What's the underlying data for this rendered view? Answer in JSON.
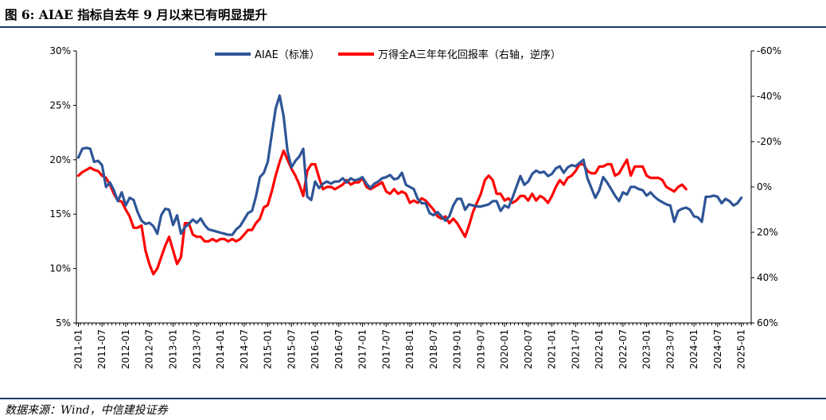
{
  "header": {
    "title": "图 6: AIAE 指标自去年 9 月以来已有明显提升"
  },
  "footer": {
    "source": "数据来源：Wind，中信建投证券"
  },
  "colors": {
    "aiae": "#2e5597",
    "return": "#ff0000",
    "rule": "#1f3a6e"
  },
  "chart_data": {
    "type": "line",
    "title": "",
    "legend_position": "top-center",
    "grid": false,
    "x_start": "2011-01",
    "x_tick_labels": [
      "2011-01",
      "2011-07",
      "2012-01",
      "2012-07",
      "2013-01",
      "2013-07",
      "2014-01",
      "2014-07",
      "2015-01",
      "2015-07",
      "2016-01",
      "2016-07",
      "2017-01",
      "2017-07",
      "2018-01",
      "2018-07",
      "2019-01",
      "2019-07",
      "2020-01",
      "2020-07",
      "2021-01",
      "2021-07",
      "2022-01",
      "2022-07",
      "2023-01",
      "2023-07",
      "2024-01",
      "2024-07",
      "2025-01"
    ],
    "y_left": {
      "min": 5,
      "max": 30,
      "step": 5,
      "tick_labels": [
        "5%",
        "10%",
        "15%",
        "20%",
        "25%",
        "30%"
      ]
    },
    "y_right": {
      "reversed": true,
      "min": -60,
      "max": 60,
      "step": 20,
      "tick_labels": [
        "-60%",
        "-40%",
        "-20%",
        "0%",
        "20%",
        "40%",
        "60%"
      ]
    },
    "series": [
      {
        "name": "AIAE（标准）",
        "axis": "left",
        "values": [
          20.2,
          21.0,
          21.1,
          21.0,
          19.8,
          19.9,
          19.5,
          17.5,
          17.9,
          17.2,
          16.2,
          17.0,
          15.8,
          16.5,
          16.3,
          15.2,
          14.4,
          14.1,
          14.2,
          13.9,
          13.2,
          14.9,
          15.5,
          15.4,
          14.0,
          14.9,
          13.2,
          13.8,
          14.1,
          14.5,
          14.2,
          14.6,
          14.0,
          13.6,
          13.5,
          13.4,
          13.3,
          13.2,
          13.1,
          13.1,
          13.6,
          13.9,
          14.5,
          15.1,
          15.3,
          16.6,
          18.4,
          18.8,
          19.8,
          22.3,
          24.7,
          25.9,
          24.0,
          20.8,
          19.3,
          19.9,
          20.3,
          21.0,
          16.6,
          16.3,
          18.0,
          17.4,
          17.8,
          18.0,
          17.8,
          18.0,
          18.0,
          18.3,
          17.9,
          18.3,
          18.1,
          18.2,
          18.4,
          17.8,
          17.4,
          17.8,
          18.0,
          18.3,
          18.4,
          18.6,
          18.2,
          18.3,
          18.8,
          17.7,
          17.5,
          17.3,
          16.4,
          16.0,
          16.0,
          15.1,
          14.9,
          15.2,
          14.8,
          14.4,
          14.8,
          15.8,
          16.4,
          16.4,
          15.4,
          15.9,
          15.8,
          15.7,
          15.7,
          15.8,
          15.9,
          16.2,
          16.2,
          15.3,
          15.8,
          15.6,
          16.5,
          17.5,
          18.5,
          17.7,
          18.0,
          18.7,
          19.0,
          18.8,
          18.9,
          18.5,
          18.7,
          19.2,
          19.4,
          18.8,
          19.3,
          19.5,
          19.4,
          19.7,
          20.0,
          18.3,
          17.4,
          16.5,
          17.2,
          18.4,
          17.9,
          17.3,
          16.7,
          16.2,
          17.0,
          16.8,
          17.5,
          17.5,
          17.3,
          17.2,
          16.7,
          17.0,
          16.6,
          16.3,
          16.1,
          15.9,
          15.8,
          14.3,
          15.3,
          15.5,
          15.6,
          15.4,
          14.8,
          14.7,
          14.3,
          16.6,
          16.6,
          16.7,
          16.6,
          16.0,
          16.4,
          16.2,
          15.8,
          16.0,
          16.5
        ]
      },
      {
        "name": "万得全A三年年化回报率（右轴，逆序）",
        "axis": "right",
        "values": [
          -5,
          -6.5,
          -7.5,
          -8.5,
          -7.5,
          -7,
          -5,
          -4,
          -1,
          3,
          6,
          6.5,
          10,
          13,
          18,
          18,
          17,
          28,
          34,
          38.5,
          36,
          31,
          26,
          22,
          28,
          34,
          31,
          16,
          16,
          21,
          22,
          22,
          24,
          24,
          23,
          24,
          23,
          23,
          24,
          23,
          24,
          23,
          21,
          19,
          19,
          16,
          14,
          9,
          8,
          2,
          -5,
          -11,
          -16,
          -12,
          -8,
          -5,
          -1,
          4,
          -7,
          -10,
          -10,
          -4,
          1,
          0,
          0,
          1,
          0,
          -1,
          -3,
          -1,
          -2,
          -2,
          -4,
          0,
          1,
          0,
          -1,
          -2,
          2,
          3,
          1,
          3,
          2,
          3,
          7,
          6,
          7,
          5,
          6,
          8,
          10,
          13,
          14,
          13,
          16,
          14,
          16,
          19,
          22,
          17,
          11,
          7,
          3,
          -3,
          -5,
          -3,
          3,
          3,
          6,
          5,
          7,
          6,
          4,
          4,
          6,
          3,
          6,
          4,
          5,
          7,
          4,
          0,
          -3,
          -1,
          -4,
          -5,
          -7,
          -10,
          -10,
          -7,
          -6,
          -6,
          -9,
          -9,
          -10,
          -10,
          -5,
          -6,
          -9,
          -12,
          -5,
          -9,
          -9,
          -9,
          -5,
          -4,
          -4,
          -4,
          -3,
          0,
          1,
          2,
          0,
          -1,
          1
        ]
      }
    ]
  }
}
